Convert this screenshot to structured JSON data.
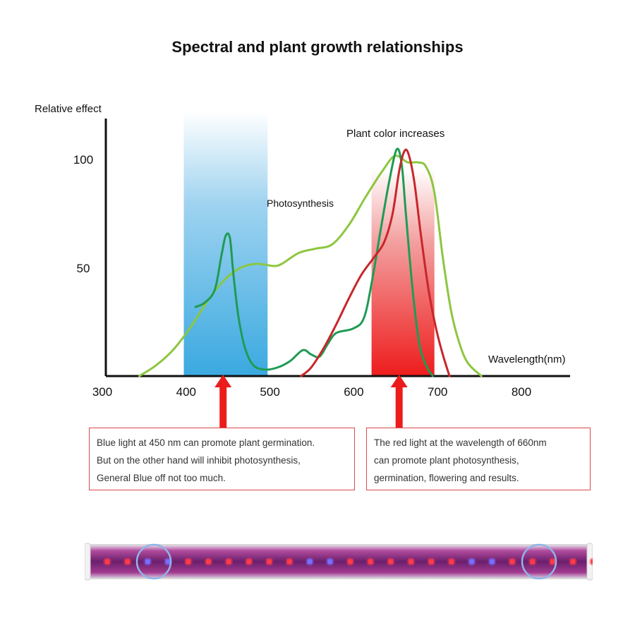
{
  "title": "Spectral and plant growth relationships",
  "chart_data": {
    "type": "line",
    "ylabel": "Relative effect",
    "xlabel": "Wavelength(nm)",
    "x_ticks": [
      "300",
      "400",
      "500",
      "600",
      "700",
      "800"
    ],
    "y_ticks": [
      "100",
      "50"
    ],
    "xlim": [
      300,
      860
    ],
    "ylim": [
      0,
      120
    ],
    "bands": [
      {
        "name": "blue",
        "from": 393,
        "to": 493,
        "color": "#4ab0e2"
      },
      {
        "name": "red",
        "from": 617,
        "to": 692,
        "color": "#ec2a2a"
      }
    ],
    "annotations": {
      "photosynthesis": "Photosynthesis",
      "plant_color": "Plant color increases"
    },
    "series": [
      {
        "color": "#8dc63f",
        "points": [
          [
            340,
            0
          ],
          [
            360,
            5
          ],
          [
            380,
            12
          ],
          [
            400,
            22
          ],
          [
            420,
            34
          ],
          [
            440,
            44
          ],
          [
            460,
            50
          ],
          [
            480,
            52
          ],
          [
            500,
            51
          ],
          [
            510,
            52
          ],
          [
            530,
            57
          ],
          [
            550,
            59
          ],
          [
            570,
            61
          ],
          [
            590,
            70
          ],
          [
            610,
            83
          ],
          [
            630,
            95
          ],
          [
            645,
            102
          ],
          [
            660,
            99
          ],
          [
            672,
            99
          ],
          [
            682,
            97
          ],
          [
            692,
            85
          ],
          [
            702,
            55
          ],
          [
            712,
            30
          ],
          [
            722,
            15
          ],
          [
            732,
            6
          ],
          [
            748,
            0
          ]
        ]
      },
      {
        "color": "#1f9b55",
        "points": [
          [
            407,
            32
          ],
          [
            418,
            34
          ],
          [
            430,
            40
          ],
          [
            438,
            56
          ],
          [
            443,
            65
          ],
          [
            448,
            64
          ],
          [
            452,
            48
          ],
          [
            458,
            28
          ],
          [
            466,
            13
          ],
          [
            476,
            5
          ],
          [
            490,
            3
          ],
          [
            505,
            4
          ],
          [
            520,
            7
          ],
          [
            535,
            12
          ],
          [
            545,
            10
          ],
          [
            555,
            9
          ],
          [
            565,
            15
          ],
          [
            575,
            20
          ],
          [
            595,
            22
          ],
          [
            608,
            27
          ],
          [
            618,
            45
          ],
          [
            628,
            68
          ],
          [
            638,
            90
          ],
          [
            647,
            105
          ],
          [
            653,
            98
          ],
          [
            658,
            75
          ],
          [
            666,
            40
          ],
          [
            674,
            15
          ],
          [
            682,
            5
          ],
          [
            690,
            0
          ]
        ]
      },
      {
        "color": "#c8262a",
        "points": [
          [
            533,
            0
          ],
          [
            545,
            4
          ],
          [
            560,
            13
          ],
          [
            575,
            24
          ],
          [
            590,
            36
          ],
          [
            605,
            47
          ],
          [
            620,
            55
          ],
          [
            632,
            62
          ],
          [
            642,
            75
          ],
          [
            650,
            95
          ],
          [
            656,
            104
          ],
          [
            661,
            103
          ],
          [
            668,
            90
          ],
          [
            676,
            65
          ],
          [
            685,
            40
          ],
          [
            694,
            22
          ],
          [
            702,
            10
          ],
          [
            710,
            0
          ]
        ]
      }
    ]
  },
  "callouts": {
    "blue": [
      "Blue light at 450 nm can promote plant germination.",
      "But on the other hand will inhibit photosynthesis,",
      "General Blue off not too much."
    ],
    "red": [
      "The red light at the wavelength of 660nm",
      "can promote plant photosynthesis,",
      "germination, flowering and results."
    ]
  },
  "arrows": {
    "blue_nm": 450,
    "red_nm": 660,
    "color": "#ec1c1c"
  },
  "led_strip": {
    "pattern": [
      "red",
      "red",
      "blue",
      "blue",
      "red",
      "red",
      "red",
      "red",
      "red",
      "red",
      "blue",
      "blue",
      "red",
      "red",
      "red",
      "red",
      "red",
      "red",
      "blue",
      "blue",
      "red",
      "red",
      "red",
      "red",
      "red"
    ],
    "colors": {
      "red": "#ff3b4a",
      "blue": "#7a6dff"
    }
  }
}
